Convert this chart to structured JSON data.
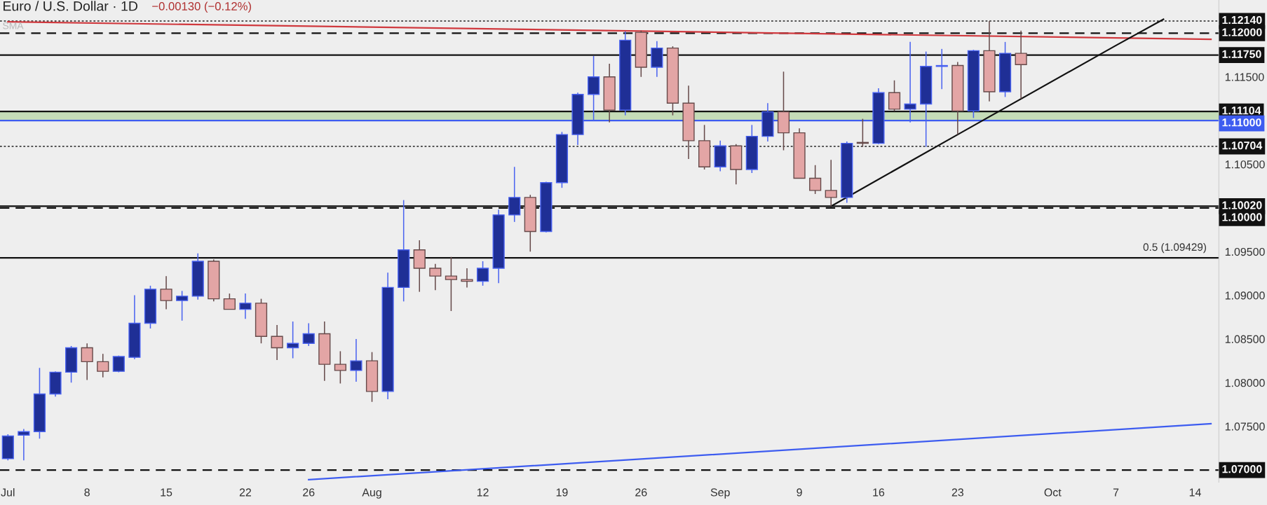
{
  "chart_data": {
    "type": "candlestick",
    "title": "Euro / U.S. Dollar · 1D",
    "subtitle": "−0.00130 (−0.12%)",
    "categories": [
      "Jul",
      null,
      null,
      null,
      null,
      "8",
      null,
      null,
      null,
      null,
      "15",
      null,
      null,
      null,
      null,
      "22",
      null,
      null,
      null,
      "26",
      null,
      null,
      null,
      "Aug",
      null,
      null,
      null,
      null,
      null,
      null,
      "12",
      null,
      null,
      null,
      null,
      "19",
      null,
      null,
      null,
      null,
      "26",
      null,
      null,
      null,
      null,
      "Sep",
      null,
      null,
      null,
      null,
      "9",
      null,
      null,
      null,
      null,
      "16",
      null,
      null,
      null,
      null,
      "23",
      null,
      null,
      null,
      null,
      null,
      "Oct",
      null,
      null,
      null,
      "7",
      null,
      null,
      null,
      null,
      "14",
      null
    ],
    "ohlc": [
      [
        1.0713,
        1.0741,
        1.0711,
        1.0739
      ],
      [
        1.074,
        1.0747,
        1.0711,
        1.0744
      ],
      [
        1.0744,
        1.0817,
        1.0736,
        1.0787
      ],
      [
        1.0787,
        1.0813,
        1.0784,
        1.0812
      ],
      [
        1.0812,
        1.0842,
        1.08,
        1.084
      ],
      [
        1.084,
        1.0845,
        1.0803,
        1.0824
      ],
      [
        1.0824,
        1.0833,
        1.0806,
        1.0813
      ],
      [
        1.0813,
        1.0831,
        1.0812,
        1.083
      ],
      [
        1.0829,
        1.09,
        1.0827,
        1.0868
      ],
      [
        1.0868,
        1.0911,
        1.0862,
        1.0907
      ],
      [
        1.0907,
        1.0922,
        1.0884,
        1.0894
      ],
      [
        1.0894,
        1.0905,
        1.0871,
        1.0899
      ],
      [
        1.0899,
        1.0948,
        1.0895,
        1.0939
      ],
      [
        1.0939,
        1.0941,
        1.0893,
        1.0896
      ],
      [
        1.0896,
        1.0902,
        1.0884,
        1.0884
      ],
      [
        1.0884,
        1.0902,
        1.0873,
        1.0891
      ],
      [
        1.0891,
        1.0896,
        1.0845,
        1.0853
      ],
      [
        1.0853,
        1.0866,
        1.0826,
        1.084
      ],
      [
        1.084,
        1.087,
        1.0828,
        1.0845
      ],
      [
        1.0845,
        1.0868,
        1.0842,
        1.0856
      ],
      [
        1.0856,
        1.087,
        1.0802,
        1.0821
      ],
      [
        1.0821,
        1.0836,
        1.0799,
        1.0814
      ],
      [
        1.0814,
        1.085,
        1.0801,
        1.0825
      ],
      [
        1.0825,
        1.0835,
        1.0778,
        1.079
      ],
      [
        1.079,
        1.0926,
        1.0781,
        1.0909
      ],
      [
        1.0909,
        1.1009,
        1.0893,
        1.0952
      ],
      [
        1.0952,
        1.0963,
        1.0904,
        1.0931
      ],
      [
        1.0931,
        1.0936,
        1.0906,
        1.0922
      ],
      [
        1.0922,
        1.0944,
        1.0882,
        1.0918
      ],
      [
        1.0918,
        1.0931,
        1.0909,
        1.0916
      ],
      [
        1.0916,
        1.0939,
        1.0911,
        1.0931
      ],
      [
        1.0931,
        1.0998,
        1.0914,
        1.0992
      ],
      [
        1.0992,
        1.1047,
        1.0984,
        1.1012
      ],
      [
        1.1012,
        1.1015,
        1.095,
        1.0973
      ],
      [
        1.0973,
        1.103,
        1.0972,
        1.1029
      ],
      [
        1.1029,
        1.1087,
        1.1023,
        1.1084
      ],
      [
        1.1084,
        1.1132,
        1.1072,
        1.113
      ],
      [
        1.113,
        1.1174,
        1.11,
        1.115
      ],
      [
        1.115,
        1.1165,
        1.1098,
        1.1112
      ],
      [
        1.1112,
        1.1202,
        1.1106,
        1.1192
      ],
      [
        1.1201,
        1.1203,
        1.115,
        1.1161
      ],
      [
        1.1161,
        1.1191,
        1.115,
        1.1183
      ],
      [
        1.1183,
        1.1185,
        1.1106,
        1.112
      ],
      [
        1.112,
        1.114,
        1.1056,
        1.1077
      ],
      [
        1.1077,
        1.1095,
        1.1044,
        1.1047
      ],
      [
        1.1047,
        1.1077,
        1.1042,
        1.1071
      ],
      [
        1.1071,
        1.1073,
        1.1027,
        1.1044
      ],
      [
        1.1044,
        1.1095,
        1.104,
        1.1082
      ],
      [
        1.1082,
        1.112,
        1.1076,
        1.111
      ],
      [
        1.111,
        1.1156,
        1.1066,
        1.1086
      ],
      [
        1.1086,
        1.1091,
        1.1034,
        1.1034
      ],
      [
        1.1034,
        1.1049,
        1.1016,
        1.102
      ],
      [
        1.102,
        1.1055,
        1.1002,
        1.1012
      ],
      [
        1.1012,
        1.1076,
        1.1006,
        1.1074
      ],
      [
        1.1075,
        1.1102,
        1.107,
        1.1074
      ],
      [
        1.1074,
        1.1137,
        1.1073,
        1.1132
      ],
      [
        1.1132,
        1.1146,
        1.1111,
        1.1113
      ],
      [
        1.1113,
        1.119,
        1.1098,
        1.1119
      ],
      [
        1.1119,
        1.1179,
        1.107,
        1.1162
      ],
      [
        1.1162,
        1.1182,
        1.1136,
        1.1163
      ],
      [
        1.1163,
        1.1167,
        1.1084,
        1.1111
      ],
      [
        1.1111,
        1.1181,
        1.1103,
        1.118
      ],
      [
        1.118,
        1.1214,
        1.1122,
        1.1133
      ],
      [
        1.1133,
        1.119,
        1.1127,
        1.1177
      ],
      [
        1.1177,
        1.1203,
        1.1125,
        1.1164
      ],
      null,
      null,
      null,
      null,
      null,
      null,
      null,
      null,
      null,
      null,
      null,
      null
    ],
    "colors": [
      "#1f2f96",
      "#1f2f96",
      "#1f2f96",
      "#1f2f96",
      "#1f2f96",
      "#e3a5a5",
      "#e3a5a5",
      "#1f2f96",
      "#1f2f96",
      "#1f2f96",
      "#e3a5a5",
      "#1f2f96",
      "#1f2f96",
      "#e3a5a5",
      "#e3a5a5",
      "#1f2f96",
      "#e3a5a5",
      "#e3a5a5",
      "#1f2f96",
      "#1f2f96",
      "#e3a5a5",
      "#e3a5a5",
      "#1f2f96",
      "#e3a5a5",
      "#1f2f96",
      "#1f2f96",
      "#e3a5a5",
      "#e3a5a5",
      "#e3a5a5",
      "#e3a5a5",
      "#1f2f96",
      "#1f2f96",
      "#1f2f96",
      "#e3a5a5",
      "#1f2f96",
      "#1f2f96",
      "#1f2f96",
      "#1f2f96",
      "#e3a5a5",
      "#1f2f96",
      "#e3a5a5",
      "#1f2f96",
      "#e3a5a5",
      "#e3a5a5",
      "#e3a5a5",
      "#1f2f96",
      "#e3a5a5",
      "#1f2f96",
      "#1f2f96",
      "#e3a5a5",
      "#e3a5a5",
      "#e3a5a5",
      "#e3a5a5",
      "#1f2f96",
      "#e3a5a5",
      "#1f2f96",
      "#e3a5a5",
      "#1f2f96",
      "#1f2f96",
      "#1f2f96",
      "#e3a5a5",
      "#1f2f96",
      "#e3a5a5",
      "#1f2f96",
      "#e3a5a5",
      null,
      null,
      null,
      null,
      null,
      null,
      null,
      null,
      null,
      null,
      null,
      null
    ],
    "series": [
      {
        "type": "line",
        "color": "#d0393e",
        "values": [
          1.1213,
          null,
          null,
          null,
          null,
          null,
          null,
          null,
          null,
          null,
          null,
          null,
          null,
          null,
          null,
          null,
          null,
          null,
          null,
          null,
          null,
          null,
          null,
          null,
          null,
          null,
          null,
          null,
          null,
          null,
          null,
          null,
          null,
          null,
          null,
          null,
          null,
          null,
          null,
          null,
          null,
          null,
          null,
          null,
          null,
          null,
          null,
          null,
          null,
          null,
          null,
          null,
          null,
          null,
          null,
          null,
          null,
          null,
          null,
          null,
          null,
          null,
          null,
          null,
          null,
          null,
          null,
          null,
          null,
          null,
          null,
          null,
          null,
          null,
          null,
          null,
          1.1193
        ]
      },
      {
        "type": "line",
        "color": "#3d5cf0",
        "values": [
          null,
          null,
          null,
          null,
          null,
          null,
          null,
          null,
          null,
          null,
          null,
          null,
          null,
          null,
          null,
          null,
          null,
          null,
          null,
          1.0689,
          null,
          null,
          null,
          null,
          null,
          null,
          null,
          null,
          null,
          null,
          null,
          null,
          null,
          null,
          null,
          null,
          null,
          null,
          null,
          null,
          null,
          null,
          null,
          null,
          null,
          null,
          null,
          null,
          null,
          null,
          null,
          null,
          null,
          null,
          null,
          null,
          null,
          null,
          null,
          null,
          null,
          null,
          null,
          null,
          null,
          null,
          null,
          null,
          null,
          null,
          null,
          null,
          null,
          null,
          null,
          null,
          1.0753
        ]
      },
      {
        "type": "line",
        "color": "#111111",
        "values": [
          null,
          null,
          null,
          null,
          null,
          null,
          null,
          null,
          null,
          null,
          null,
          null,
          null,
          null,
          null,
          null,
          null,
          null,
          null,
          null,
          null,
          null,
          null,
          null,
          null,
          null,
          null,
          null,
          null,
          null,
          null,
          null,
          null,
          null,
          null,
          null,
          null,
          null,
          null,
          null,
          null,
          null,
          null,
          null,
          null,
          null,
          null,
          null,
          null,
          null,
          null,
          null,
          1.1002,
          null,
          null,
          null,
          null,
          null,
          null,
          null,
          1.1084,
          null,
          null,
          null,
          null,
          null,
          null,
          null,
          null,
          null,
          1.1186,
          null,
          null,
          1.1216,
          null,
          null,
          null
        ]
      }
    ],
    "ylim": [
      1.0686,
      1.1238
    ],
    "yticks": [
      {
        "value": 1.075,
        "label": "1.07500"
      },
      {
        "value": 1.08,
        "label": "1.08000"
      },
      {
        "value": 1.085,
        "label": "1.08500"
      },
      {
        "value": 1.09,
        "label": "1.09000"
      },
      {
        "value": 1.095,
        "label": "1.09500"
      },
      {
        "value": 1.105,
        "label": "1.10500"
      },
      {
        "value": 1.115,
        "label": "1.11500"
      }
    ],
    "ref_lines": [
      {
        "axis": "y",
        "value": 1.1214,
        "label": "1.12140",
        "color": "#222222",
        "line_style": "dotted"
      },
      {
        "axis": "y",
        "value": 1.12,
        "label": "1.12000",
        "color": "#111111",
        "line_style": "dashed"
      },
      {
        "axis": "y",
        "value": 1.1175,
        "label": "1.11750",
        "color": "#111111",
        "line_style": "solid"
      },
      {
        "axis": "y",
        "value": 1.11104,
        "label": "1.11104",
        "color": "#111111",
        "line_style": "solid"
      },
      {
        "axis": "y",
        "value": 1.11,
        "label": "1.11000",
        "color": "#3d5cf0",
        "line_style": "solid"
      },
      {
        "axis": "y",
        "value": 1.10704,
        "label": "1.10704",
        "color": "#222222",
        "line_style": "dotted"
      },
      {
        "axis": "y",
        "value": 1.1002,
        "label": "1.10020",
        "color": "#111111",
        "line_style": "solid"
      },
      {
        "axis": "y",
        "value": 1.1,
        "label": "1.10000",
        "color": "#111111",
        "line_style": "dashed"
      },
      {
        "axis": "y",
        "value": 1.09429,
        "color": "#111111",
        "line_style": "solid"
      },
      {
        "axis": "y",
        "value": 1.07,
        "label": "1.07000",
        "color": "#111111",
        "line_style": "dashed"
      }
    ],
    "bands": [
      {
        "axis": "y",
        "from": 1.11,
        "to": 1.11104,
        "color": "#c5dcb8"
      }
    ],
    "annotations": [
      "SMA",
      {
        "text": "0.5 (1.09429)",
        "y": 1.09429
      }
    ],
    "grid": false,
    "legend": false
  }
}
